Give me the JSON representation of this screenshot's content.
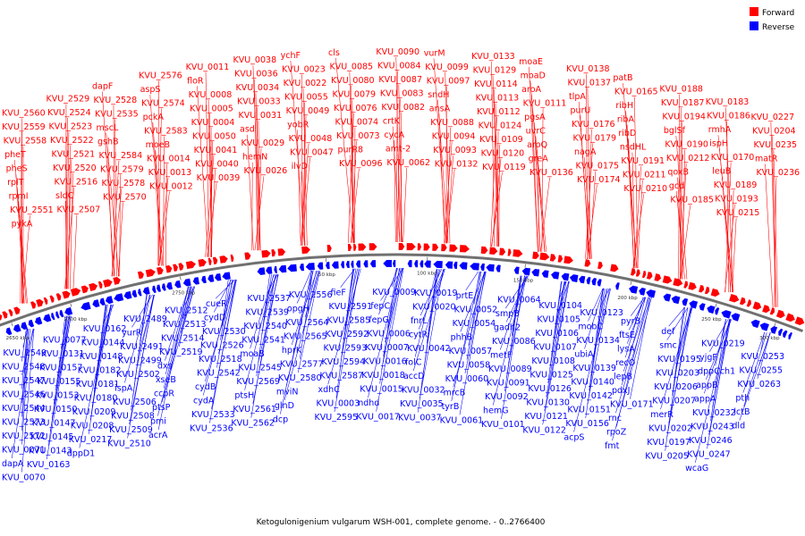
{
  "caption": "Ketogulonigenium vulgarum WSH-001, complete genome. - 0..2766400",
  "legend": [
    {
      "label": "Forward",
      "color": "#ff0000"
    },
    {
      "label": "Reverse",
      "color": "#0000ff"
    }
  ],
  "colors": {
    "forward": "#ff0000",
    "reverse": "#0000ff",
    "backbone": "#707070"
  },
  "ticks": [
    "2650 kbp",
    "2700 kbp",
    "2750 kbp",
    "50 kbp",
    "100 kbp",
    "150 kbp",
    "200 kbp",
    "250 kbp",
    "300 kbp"
  ],
  "forward_labels": [
    "KVU_2560",
    "KVU_2559",
    "KVU_2558",
    "pheT",
    "pheS",
    "rplT",
    "rpmI",
    "KVU_2551",
    "pykA",
    "KVU_2529",
    "KVU_2524",
    "KVU_2523",
    "KVU_2522",
    "KVU_2521",
    "KVU_2520",
    "KVU_2516",
    "sldC",
    "KVU_2507",
    "dapF",
    "KVU_2528",
    "KVU_2535",
    "mscL",
    "gshB",
    "KVU_2584",
    "KVU_2579",
    "KVU_2578",
    "KVU_2570",
    "KVU_2576",
    "aspS",
    "KVU_2574",
    "pckA",
    "KVU_2583",
    "moeB",
    "KVU_0014",
    "KVU_0013",
    "KVU_0012",
    "KVU_0011",
    "floR",
    "KVU_0008",
    "KVU_0005",
    "KVU_0004",
    "KVU_0050",
    "KVU_0041",
    "KVU_0040",
    "KVU_0039",
    "KVU_0038",
    "KVU_0036",
    "KVU_0034",
    "KVU_0033",
    "KVU_0031",
    "asd",
    "KVU_0029",
    "hemN",
    "KVU_0026",
    "ychF",
    "KVU_0023",
    "KVU_0022",
    "KVU_0055",
    "KVU_0049",
    "yobR",
    "KVU_0048",
    "KVU_0047",
    "ilvD",
    "cls",
    "KVU_0085",
    "KVU_0080",
    "KVU_0079",
    "KVU_0076",
    "KVU_0074",
    "KVU_0073",
    "purR8",
    "KVU_0096",
    "KVU_0090",
    "KVU_0084",
    "KVU_0087",
    "KVU_0083",
    "KVU_0082",
    "crtK",
    "cycA",
    "amt-2",
    "KVU_0062",
    "vurM",
    "KVU_0099",
    "KVU_0097",
    "sndH",
    "ansA",
    "KVU_0088",
    "KVU_0094",
    "KVU_0093",
    "KVU_0132",
    "KVU_0133",
    "KVU_0129",
    "KVU_0114",
    "KVU_0113",
    "KVU_0112",
    "KVU_0124",
    "KVU_0109",
    "KVU_0120",
    "KVU_0119",
    "moaE",
    "moaD",
    "aroA",
    "KVU_0111",
    "pgsA",
    "uvrC",
    "aroQ",
    "greA",
    "KVU_0136",
    "KVU_0138",
    "KVU_0137",
    "tlpA",
    "purU",
    "KVU_0176",
    "KVU_0179",
    "nagA",
    "KVU_0175",
    "KVU_0174",
    "patB",
    "KVU_0165",
    "ribH",
    "ribA",
    "ribD",
    "nsdHL",
    "KVU_0191",
    "KVU_0211",
    "KVU_0210",
    "KVU_0188",
    "KVU_0187",
    "KVU_0194",
    "bglSf",
    "KVU_0190",
    "KVU_0212",
    "qoxB",
    "gcd",
    "KVU_0185",
    "KVU_0183",
    "KVU_0186",
    "rmhA",
    "ispH",
    "KVU_0170",
    "leuB",
    "KVU_0189",
    "KVU_0193",
    "KVU_0215",
    "KVU_0227",
    "KVU_0204",
    "KVU_0235",
    "matR",
    "KVU_0236"
  ],
  "reverse_labels": [
    "KVU_2549",
    "KVU_2548",
    "KVU_2547",
    "KVU_2546",
    "KVU_2544",
    "KVU_2573",
    "KVU_2572",
    "KVU_0071",
    "dapA",
    "KVU_0070",
    "KVU_0077",
    "KVU_0131",
    "KVU_0157",
    "KVU_0155",
    "KVU_0153",
    "KVU_0150",
    "KVU_0147",
    "KVU_0145",
    "KVU_0143",
    "KVU_0163",
    "KVU_0162",
    "KVU_0144",
    "KVU_0148",
    "KVU_0182",
    "KVU_0181",
    "KVU_0180",
    "KVU_0209",
    "KVU_0208",
    "KVU_0217",
    "dppD1",
    "KVU_2489",
    "yurR",
    "KVU_2491",
    "KVU_2499",
    "KVU_2502",
    "ispA",
    "KVU_2506",
    "KVU_2508",
    "KVU_2509",
    "KVU_2510",
    "KVU_2512",
    "KVU_2513",
    "KVU_2514",
    "KVU_2519",
    "dxs",
    "xseB",
    "ccpR",
    "ptsP",
    "pmi",
    "acrA",
    "cueR",
    "cydD",
    "KVU_2530",
    "KVU_2526",
    "KVU_2518",
    "KVU_2542",
    "cydB",
    "cydA",
    "KVU_2533",
    "KVU_2536",
    "KVU_2537",
    "KVU_2539",
    "KVU_2540",
    "KVU_2541",
    "moaB",
    "KVU_2545",
    "KVU_2569",
    "ptsH",
    "KVU_2561",
    "KVU_2562",
    "KVU_2556",
    "opgH",
    "KVU_2564",
    "KVU_2565",
    "hprK",
    "KVU_2577",
    "KVU_2580",
    "mviN",
    "glnD",
    "dcp",
    "fieF",
    "KVU_2591",
    "KVU_2585",
    "KVU_2592",
    "KVU_2593",
    "KVU_2594",
    "KVU_2587",
    "xdhC",
    "KVU_0003",
    "KVU_2595",
    "KVU_0009",
    "fepC",
    "fepG",
    "KVU_0006",
    "KVU_0007",
    "KVU_0016",
    "KVU_0018",
    "KVU_0015",
    "ndhd",
    "KVU_0017",
    "KVU_0019",
    "KVU_0020",
    "fnrL",
    "cytR",
    "KVU_0042",
    "folC",
    "accD",
    "KVU_0032",
    "KVU_0035",
    "KVU_0037",
    "prtE",
    "KVU_0052",
    "KVU_0054",
    "phhB",
    "KVU_0057",
    "KVU_0058",
    "KVU_0060",
    "mrcB",
    "tyrB",
    "KVU_0061",
    "KVU_0064",
    "smpB",
    "gadh2",
    "KVU_0086",
    "metF",
    "KVU_0089",
    "KVU_0091",
    "KVU_0092",
    "hemG",
    "KVU_0101",
    "KVU_0104",
    "KVU_0105",
    "KVU_0106",
    "KVU_0107",
    "KVU_0108",
    "KVU_0125",
    "KVU_0126",
    "KVU_0130",
    "KVU_0121",
    "KVU_0122",
    "KVU_0123",
    "mobC",
    "KVU_0134",
    "ubiA",
    "KVU_0139",
    "KVU_0140",
    "KVU_0142",
    "KVU_0151",
    "KVU_0156",
    "acpS",
    "pyrB",
    "ftsE",
    "lysA",
    "recO",
    "lepB",
    "pdxJ",
    "KVU_0171",
    "rnc",
    "rpoZ",
    "fmt",
    "def",
    "smc",
    "KVU_0195",
    "KVU_0203",
    "KVU_0206",
    "KVU_0207",
    "merR",
    "KVU_0202",
    "KVU_0197",
    "KVU_0205",
    "KVU_0219",
    "yjgF",
    "dppCch1",
    "appB",
    "appA",
    "KVU_0232",
    "KVU_0243",
    "KVU_0246",
    "KVU_0247",
    "wcaG",
    "KVU_0253",
    "KVU_0255",
    "KVU_0263",
    "pth",
    "lctB",
    "dld"
  ]
}
